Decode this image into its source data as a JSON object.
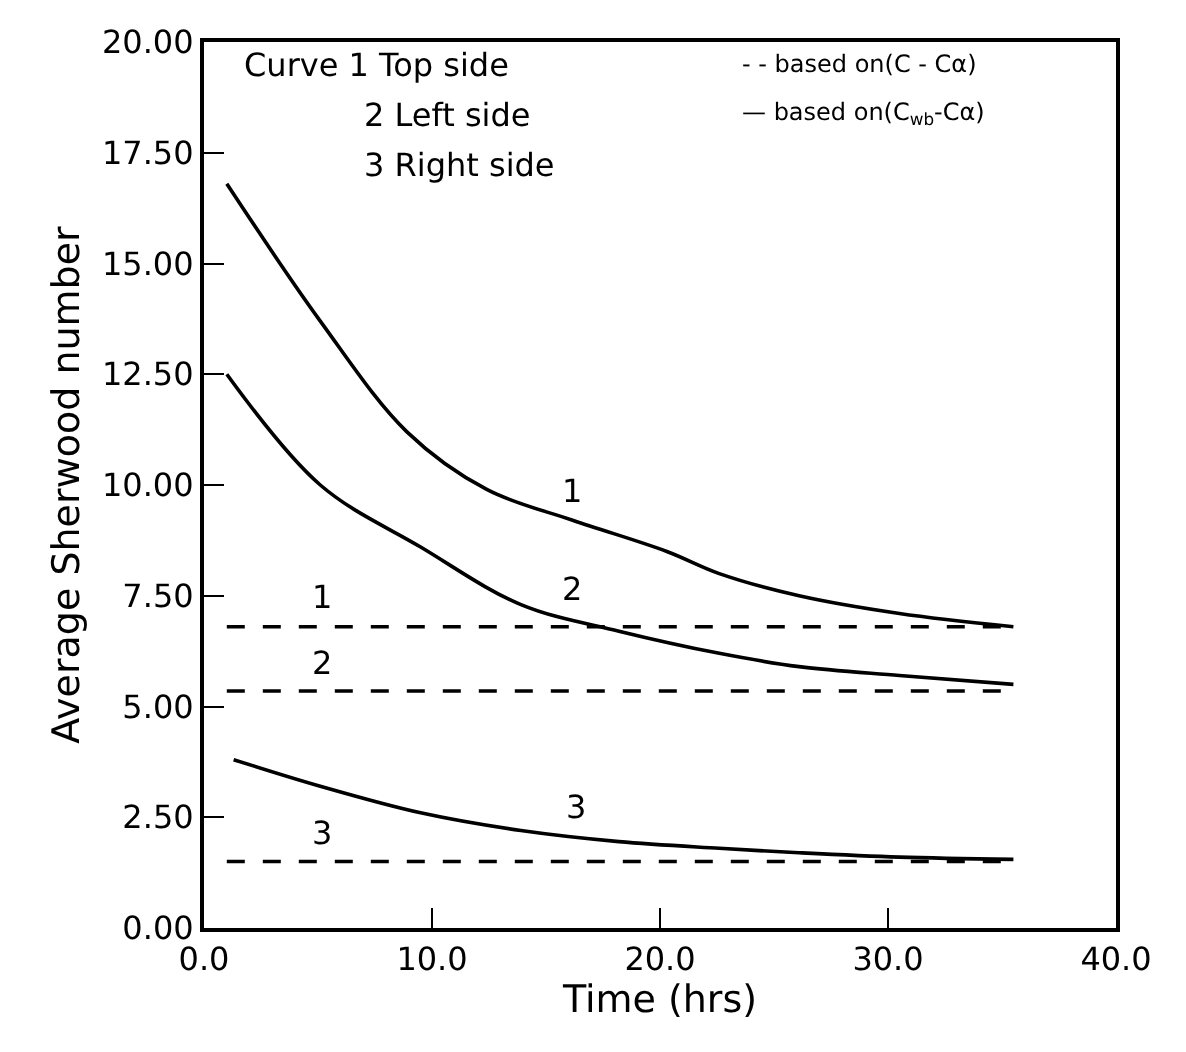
{
  "chart_data": {
    "type": "line",
    "xlabel": "Time (hrs)",
    "ylabel": "Average Sherwood number",
    "xlim": [
      0,
      40
    ],
    "xticks": [
      {
        "value": 0,
        "label": "0.0"
      },
      {
        "value": 10,
        "label": "10.0"
      },
      {
        "value": 20,
        "label": "20.0"
      },
      {
        "value": 30,
        "label": "30.0"
      },
      {
        "value": 40,
        "label": "40.0"
      }
    ],
    "ylim": [
      0,
      20
    ],
    "yticks": [
      {
        "value": 0,
        "label": "0.00"
      },
      {
        "value": 2.5,
        "label": "2.50"
      },
      {
        "value": 5,
        "label": "5.00"
      },
      {
        "value": 7.5,
        "label": "7.50"
      },
      {
        "value": 10,
        "label": "10.00"
      },
      {
        "value": 12.5,
        "label": "12.50"
      },
      {
        "value": 15,
        "label": "15.00"
      },
      {
        "value": 17.5,
        "label": "17.50"
      },
      {
        "value": 20,
        "label": "20.00"
      }
    ],
    "grid": false,
    "legend": false,
    "marker": "none",
    "series": [
      {
        "name": "1",
        "color": "#000000",
        "line_style": "solid",
        "x": [
          1.0,
          5.1,
          8.9,
          12.4,
          16.2,
          20.3,
          22.6,
          26.1,
          30.5,
          35.5
        ],
        "values": [
          16.8,
          13.7,
          11.2,
          9.9,
          9.2,
          8.5,
          8.0,
          7.5,
          7.1,
          6.8
        ]
      },
      {
        "name": "2",
        "color": "#000000",
        "line_style": "solid",
        "x": [
          1.0,
          5.1,
          9.5,
          13.9,
          18.2,
          22.6,
          26.1,
          30.5,
          35.5
        ],
        "values": [
          12.5,
          10.0,
          8.6,
          7.3,
          6.7,
          6.2,
          5.9,
          5.7,
          5.5
        ]
      },
      {
        "name": "3",
        "color": "#000000",
        "line_style": "solid",
        "x": [
          1.3,
          5.1,
          9.5,
          13.9,
          18.2,
          22.6,
          26.1,
          30.5,
          35.5
        ],
        "values": [
          3.8,
          3.2,
          2.6,
          2.2,
          1.95,
          1.8,
          1.7,
          1.6,
          1.55
        ]
      },
      {
        "name": "1",
        "color": "#000000",
        "line_style": "dashed",
        "x": [
          1.0,
          35.5
        ],
        "values": [
          6.8,
          6.8
        ]
      },
      {
        "name": "2",
        "color": "#000000",
        "line_style": "dashed",
        "x": [
          1.0,
          35.5
        ],
        "values": [
          5.35,
          5.35
        ]
      },
      {
        "name": "3",
        "color": "#000000",
        "line_style": "dashed",
        "x": [
          1.0,
          35.5
        ],
        "values": [
          1.5,
          1.5
        ]
      }
    ],
    "annotations": [
      "Curve 1 Top side",
      "2 Left side",
      "3 Right side",
      "- - based on(C - Cα)",
      "— based on(C$_{wb}$-Cα)"
    ]
  }
}
